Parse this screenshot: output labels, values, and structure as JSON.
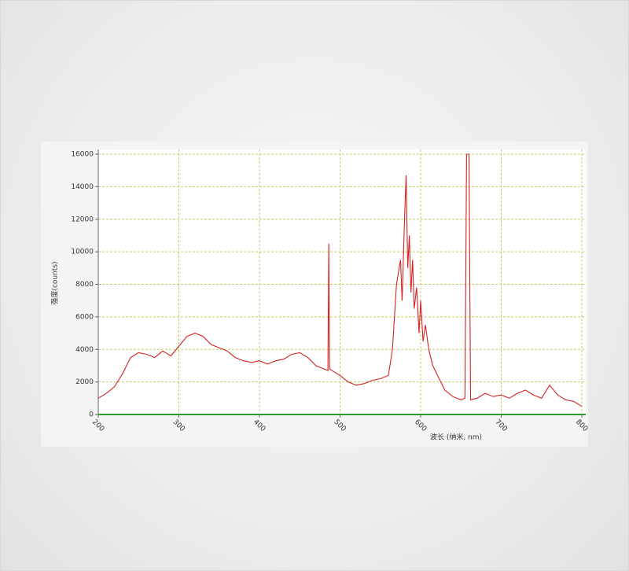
{
  "chart_data": {
    "type": "line",
    "xlabel": "波长 (纳米, nm)",
    "ylabel": "强度(counts)",
    "xlim": [
      200,
      800
    ],
    "ylim": [
      0,
      16000
    ],
    "xticks": [
      200,
      300,
      400,
      500,
      600,
      700,
      800
    ],
    "yticks": [
      0,
      2000,
      4000,
      6000,
      8000,
      10000,
      12000,
      14000,
      16000
    ],
    "grid": true,
    "baseline_color": "#2e9e2e",
    "series": [
      {
        "color": "#d42222",
        "x": [
          200,
          210,
          220,
          230,
          240,
          250,
          260,
          270,
          280,
          290,
          300,
          310,
          320,
          330,
          340,
          350,
          360,
          370,
          380,
          390,
          400,
          410,
          420,
          430,
          440,
          450,
          460,
          470,
          475,
          480,
          485,
          486,
          487,
          490,
          500,
          510,
          520,
          530,
          540,
          550,
          560,
          565,
          570,
          575,
          577,
          580,
          582,
          584,
          586,
          588,
          590,
          592,
          595,
          598,
          600,
          603,
          606,
          610,
          615,
          620,
          625,
          630,
          640,
          650,
          655,
          657,
          660,
          662,
          670,
          680,
          690,
          700,
          710,
          720,
          730,
          740,
          750,
          760,
          770,
          780,
          790,
          800
        ],
        "values": [
          1000,
          1300,
          1700,
          2500,
          3500,
          3800,
          3700,
          3500,
          3900,
          3600,
          4200,
          4800,
          5000,
          4800,
          4300,
          4100,
          3900,
          3500,
          3300,
          3200,
          3300,
          3100,
          3300,
          3400,
          3700,
          3800,
          3500,
          3000,
          2900,
          2800,
          2700,
          10500,
          2800,
          2700,
          2400,
          2000,
          1800,
          1900,
          2100,
          2200,
          2400,
          4000,
          8000,
          9500,
          7000,
          12000,
          14700,
          9000,
          11000,
          7500,
          9500,
          6500,
          7800,
          5000,
          7000,
          4500,
          5500,
          4000,
          3000,
          2500,
          2000,
          1500,
          1100,
          900,
          1000,
          16000,
          16000,
          900,
          1000,
          1300,
          1100,
          1200,
          1000,
          1300,
          1500,
          1200,
          1000,
          1800,
          1200,
          900,
          800,
          500
        ]
      }
    ]
  }
}
